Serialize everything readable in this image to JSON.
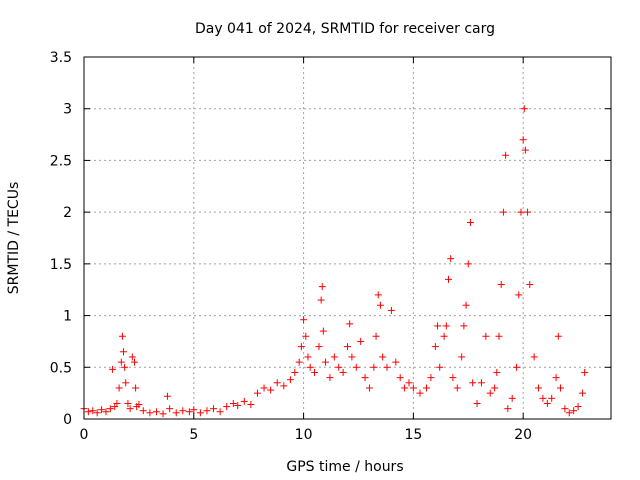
{
  "chart_data": {
    "type": "scatter",
    "title": "Day 041 of 2024, SRMTID for receiver carg",
    "xlabel": "GPS time / hours",
    "ylabel": "SRMTID / TECUs",
    "xlim": [
      0,
      24
    ],
    "ylim": [
      0,
      3.5
    ],
    "x_ticks": [
      0,
      5,
      10,
      15,
      20
    ],
    "x_tick_labels": [
      "0",
      "5",
      "10",
      "15",
      "20"
    ],
    "y_ticks": [
      0,
      0.5,
      1,
      1.5,
      2,
      2.5,
      3,
      3.5
    ],
    "y_tick_labels": [
      "0",
      "0.5",
      "1",
      "1.5",
      "2",
      "2.5",
      "3",
      "3.5"
    ],
    "grid": true,
    "marker": "plus",
    "color": "#ff0000",
    "series": [
      {
        "name": "SRMTID",
        "x": [
          0.0,
          0.2,
          0.4,
          0.6,
          0.8,
          1.0,
          1.2,
          1.3,
          1.4,
          1.5,
          1.6,
          1.7,
          1.75,
          1.8,
          1.85,
          1.9,
          2.0,
          2.1,
          2.2,
          2.3,
          2.35,
          2.4,
          2.5,
          2.7,
          3.0,
          3.3,
          3.6,
          3.8,
          3.9,
          4.2,
          4.5,
          4.8,
          5.0,
          5.3,
          5.6,
          5.9,
          6.2,
          6.5,
          6.8,
          7.0,
          7.3,
          7.6,
          7.9,
          8.2,
          8.5,
          8.8,
          9.1,
          9.4,
          9.6,
          9.8,
          9.9,
          10.0,
          10.1,
          10.2,
          10.3,
          10.5,
          10.7,
          10.8,
          10.85,
          10.9,
          11.0,
          11.2,
          11.4,
          11.6,
          11.8,
          12.0,
          12.1,
          12.2,
          12.4,
          12.6,
          12.8,
          13.0,
          13.2,
          13.3,
          13.4,
          13.5,
          13.6,
          13.8,
          14.0,
          14.2,
          14.4,
          14.6,
          14.8,
          15.0,
          15.3,
          15.6,
          15.8,
          16.0,
          16.1,
          16.2,
          16.4,
          16.5,
          16.6,
          16.7,
          16.8,
          17.0,
          17.2,
          17.3,
          17.4,
          17.5,
          17.6,
          17.7,
          17.9,
          18.1,
          18.3,
          18.5,
          18.7,
          18.8,
          18.9,
          19.0,
          19.1,
          19.2,
          19.3,
          19.5,
          19.7,
          19.8,
          19.9,
          20.0,
          20.05,
          20.1,
          20.2,
          20.3,
          20.5,
          20.7,
          20.9,
          21.1,
          21.3,
          21.5,
          21.6,
          21.7,
          21.9,
          22.1,
          22.3,
          22.5,
          22.7,
          22.8
        ],
        "y": [
          0.1,
          0.07,
          0.08,
          0.06,
          0.09,
          0.07,
          0.1,
          0.48,
          0.12,
          0.15,
          0.3,
          0.55,
          0.8,
          0.65,
          0.5,
          0.35,
          0.15,
          0.1,
          0.6,
          0.55,
          0.3,
          0.12,
          0.14,
          0.08,
          0.06,
          0.07,
          0.05,
          0.22,
          0.1,
          0.06,
          0.08,
          0.07,
          0.09,
          0.06,
          0.08,
          0.1,
          0.07,
          0.12,
          0.15,
          0.13,
          0.17,
          0.14,
          0.25,
          0.3,
          0.28,
          0.35,
          0.32,
          0.38,
          0.45,
          0.55,
          0.7,
          0.96,
          0.8,
          0.6,
          0.5,
          0.45,
          0.7,
          1.15,
          1.28,
          0.85,
          0.55,
          0.4,
          0.6,
          0.5,
          0.45,
          0.7,
          0.92,
          0.6,
          0.5,
          0.75,
          0.4,
          0.3,
          0.5,
          0.8,
          1.2,
          1.1,
          0.6,
          0.5,
          1.05,
          0.55,
          0.4,
          0.3,
          0.35,
          0.3,
          0.25,
          0.3,
          0.4,
          0.7,
          0.9,
          0.5,
          0.8,
          0.9,
          1.35,
          1.55,
          0.4,
          0.3,
          0.6,
          0.9,
          1.1,
          1.5,
          1.9,
          0.35,
          0.15,
          0.35,
          0.8,
          0.25,
          0.3,
          0.45,
          0.8,
          1.3,
          2.0,
          2.55,
          0.1,
          0.2,
          0.5,
          1.2,
          2.0,
          2.7,
          3.0,
          2.6,
          2.0,
          1.3,
          0.6,
          0.3,
          0.2,
          0.15,
          0.2,
          0.4,
          0.8,
          0.3,
          0.1,
          0.06,
          0.08,
          0.12,
          0.25,
          0.45
        ]
      }
    ]
  }
}
